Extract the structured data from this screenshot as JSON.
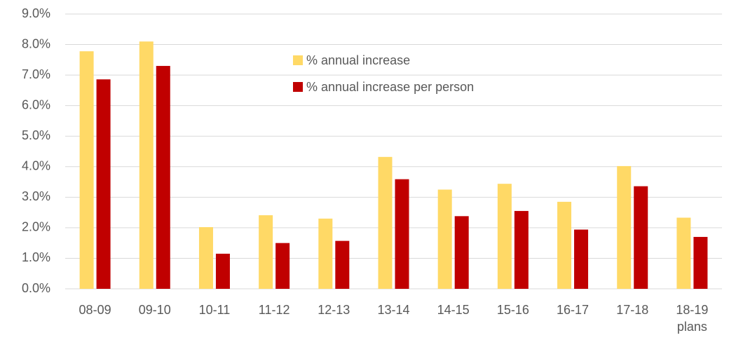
{
  "chart_data": {
    "type": "bar",
    "categories": [
      "08-09",
      "09-10",
      "10-11",
      "11-12",
      "12-13",
      "13-14",
      "14-15",
      "15-16",
      "16-17",
      "17-18",
      "18-19 plans"
    ],
    "series": [
      {
        "name": "% annual increase",
        "color": "#FFD966",
        "values": [
          7.78,
          8.1,
          2.02,
          2.41,
          2.3,
          4.32,
          3.25,
          3.44,
          2.85,
          4.02,
          2.33
        ]
      },
      {
        "name": "% annual increase per person",
        "color": "#C00000",
        "values": [
          6.86,
          7.3,
          1.15,
          1.5,
          1.57,
          3.59,
          2.38,
          2.55,
          1.94,
          3.36,
          1.7
        ]
      }
    ],
    "ylim": [
      0,
      9
    ],
    "yticks": [
      {
        "value": 0,
        "label": "0.0%"
      },
      {
        "value": 1,
        "label": "1.0%"
      },
      {
        "value": 2,
        "label": "2.0%"
      },
      {
        "value": 3,
        "label": "3.0%"
      },
      {
        "value": 4,
        "label": "4.0%"
      },
      {
        "value": 5,
        "label": "5.0%"
      },
      {
        "value": 6,
        "label": "6.0%"
      },
      {
        "value": 7,
        "label": "7.0%"
      },
      {
        "value": 8,
        "label": "8.0%"
      },
      {
        "value": 9,
        "label": "9.0%"
      }
    ],
    "grid": true
  }
}
